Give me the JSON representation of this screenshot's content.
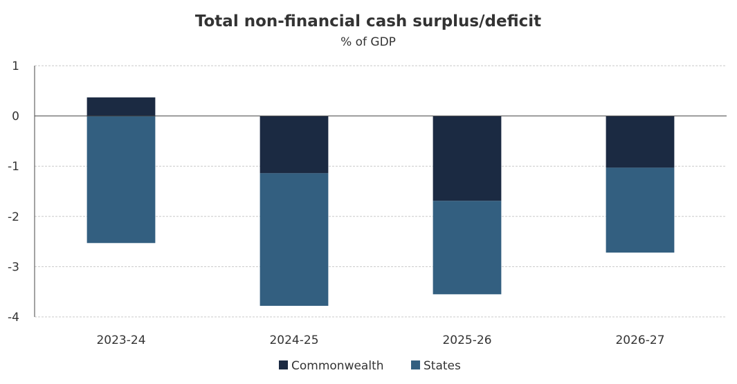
{
  "chart_data": {
    "type": "bar",
    "stacked": true,
    "title": "Total non-financial cash surplus/deficit",
    "subtitle": "% of GDP",
    "xlabel": "",
    "ylabel": "",
    "categories": [
      "2023-24",
      "2024-25",
      "2025-26",
      "2026-27"
    ],
    "series": [
      {
        "name": "Commonwealth",
        "color": "#1b2a42",
        "values": [
          0.37,
          -1.14,
          -1.69,
          -1.03
        ]
      },
      {
        "name": "States",
        "color": "#335f80",
        "values": [
          -2.53,
          -2.64,
          -1.86,
          -1.69
        ]
      }
    ],
    "ylim": [
      -4,
      1
    ],
    "yticks": [
      1,
      0,
      -1,
      -2,
      -3,
      -4
    ],
    "grid": true,
    "legend": "bottom-center"
  }
}
